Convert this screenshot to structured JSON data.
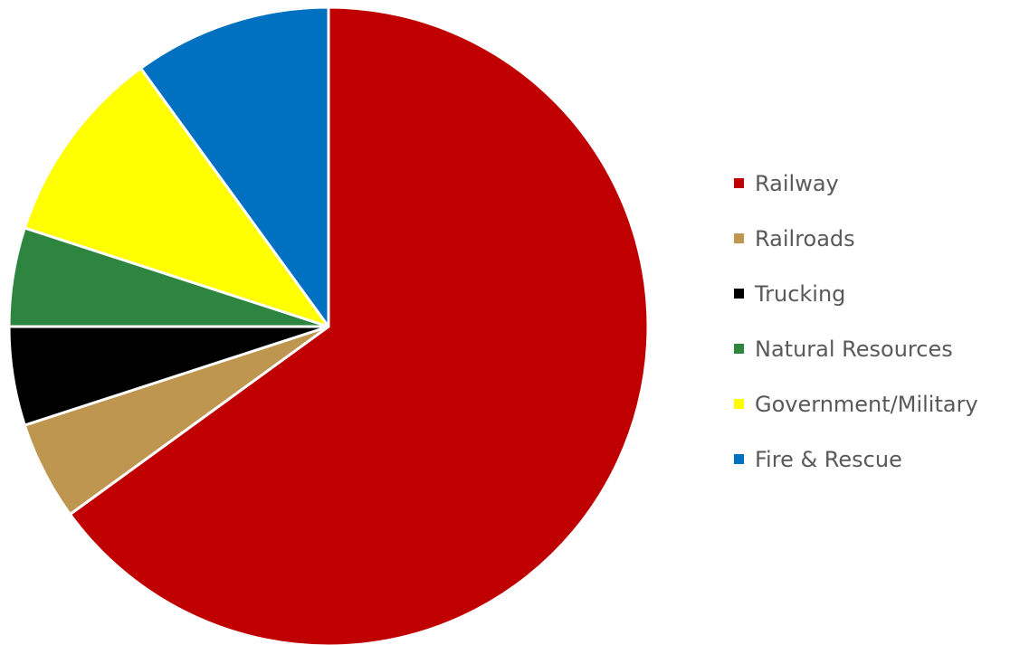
{
  "chart_data": {
    "type": "pie",
    "title": "",
    "legend_position": "right",
    "slices": [
      {
        "label": "Railway",
        "value": 65,
        "color": "#C00000"
      },
      {
        "label": "Railroads",
        "value": 5,
        "color": "#BF9650"
      },
      {
        "label": "Trucking",
        "value": 5,
        "color": "#000000"
      },
      {
        "label": "Natural Resources",
        "value": 5,
        "color": "#2E8540"
      },
      {
        "label": "Government/Military",
        "value": 10,
        "color": "#FFFF00"
      },
      {
        "label": "Fire & Rescue",
        "value": 10,
        "color": "#0070C0"
      }
    ]
  }
}
